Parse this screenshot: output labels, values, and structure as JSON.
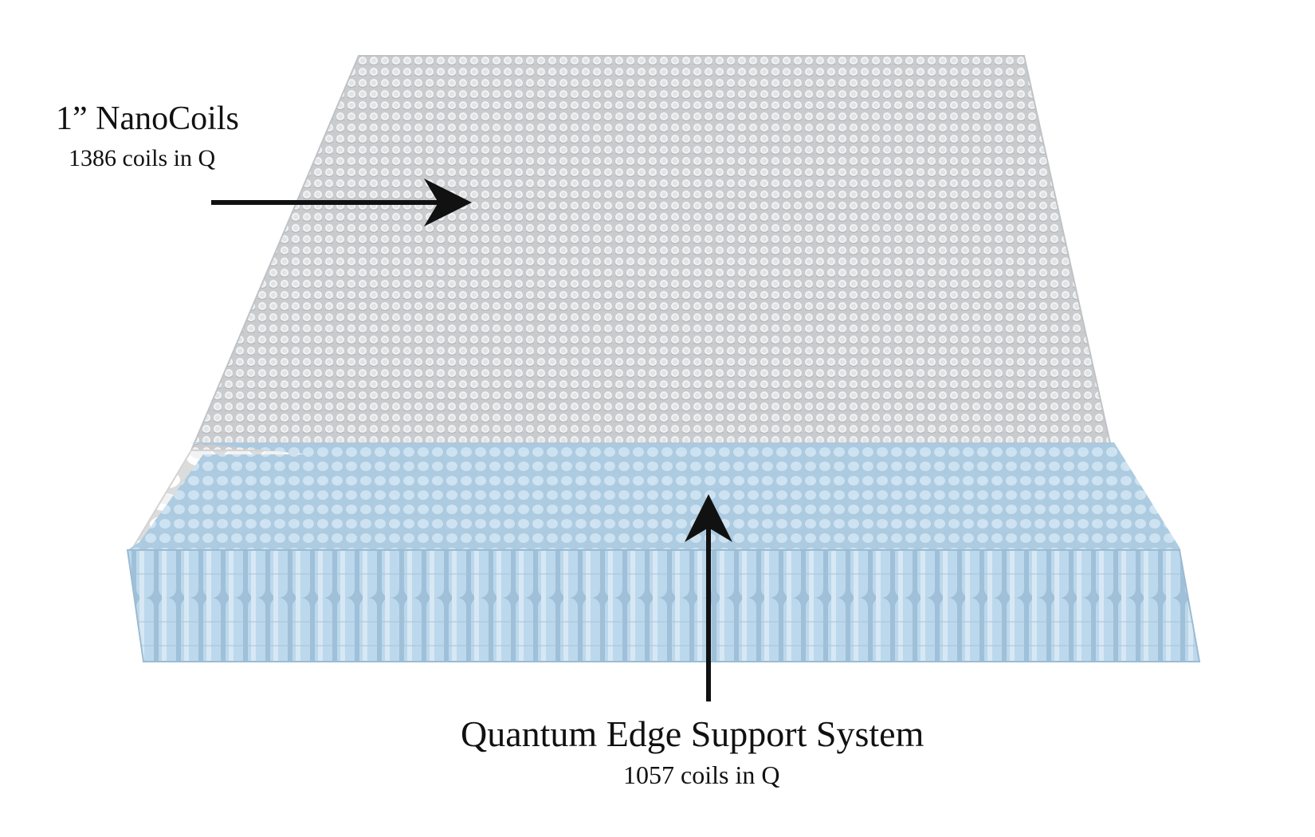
{
  "labels": {
    "nanocoils": {
      "title": "1” NanoCoils",
      "subtitle": "1386 coils in Q"
    },
    "edge_support": {
      "title": "Quantum Edge Support System",
      "subtitle": "1057 coils in Q"
    }
  },
  "colors": {
    "top_coil_layer": "#d9dbdd",
    "inner_coils": "#f6f6f6",
    "edge_coils": "#b9d6ea",
    "arrow": "#111111",
    "text": "#111111"
  },
  "icons": {
    "nanocoil_arrow": "arrow-right-icon",
    "edge_arrow": "arrow-up-icon"
  }
}
